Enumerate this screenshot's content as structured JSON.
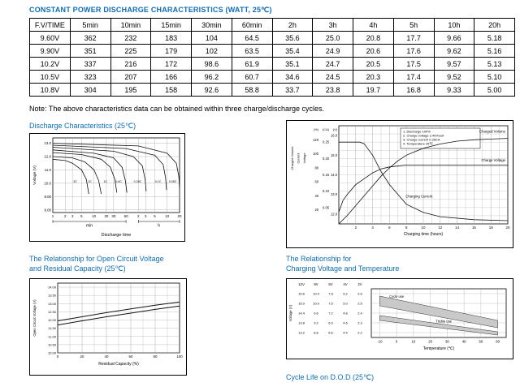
{
  "page": {
    "title": "CONSTANT POWER DISCHARGE CHARACTERISTICS (WATT, 25℃)",
    "note": "Note: The above characteristics data can be obtained within three charge/discharge cycles."
  },
  "colors": {
    "accent": "#0E6EB8",
    "grid": "#999999",
    "curve": "#111111"
  },
  "table": {
    "headers": [
      "F.V/TIME",
      "5min",
      "10min",
      "15min",
      "30min",
      "60min",
      "2h",
      "3h",
      "4h",
      "5h",
      "10h",
      "20h"
    ],
    "rows": [
      [
        "9.60V",
        "362",
        "232",
        "183",
        "104",
        "64.5",
        "35.6",
        "25.0",
        "20.8",
        "17.7",
        "9.66",
        "5.18"
      ],
      [
        "9.90V",
        "351",
        "225",
        "179",
        "102",
        "63.5",
        "35.4",
        "24.9",
        "20.6",
        "17.6",
        "9.62",
        "5.16"
      ],
      [
        "10.2V",
        "337",
        "216",
        "172",
        "98.6",
        "61.9",
        "35.1",
        "24.7",
        "20.5",
        "17.5",
        "9.57",
        "5.13"
      ],
      [
        "10.5V",
        "323",
        "207",
        "166",
        "96.2",
        "60.7",
        "34.6",
        "24.5",
        "20.3",
        "17.4",
        "9.52",
        "5.10"
      ],
      [
        "10.8V",
        "304",
        "195",
        "158",
        "92.6",
        "58.8",
        "33.7",
        "23.8",
        "19.7",
        "16.8",
        "9.33",
        "5.00"
      ]
    ]
  },
  "sections": {
    "discharge_title": "Discharge Characteristics (25℃)",
    "ocv_title_line1": "The Relationship for Open Circuit Voltage",
    "ocv_title_line2": "and Residual Capacity (25℃)",
    "charging_title_line1": "The Relationship for",
    "charging_title_line2": "Charging Voltage and Temperature",
    "cycle_life_title": "Cycle Life on D.O.D (25℃)"
  },
  "chart_data": [
    {
      "id": "discharge-characteristics",
      "type": "line",
      "title": "Discharge Characteristics (25℃)",
      "xlabel": "Discharge time",
      "ylabel": "Voltage (V)",
      "x_scale": "log-minutes",
      "x_ticks_min": [
        1,
        2,
        3,
        5,
        10,
        20,
        30,
        60
      ],
      "x_ticks_h": [
        2,
        3,
        5,
        10,
        20
      ],
      "x_group_labels": [
        "min",
        "h"
      ],
      "y_ticks": [
        "13.0",
        "12.0",
        "11.0",
        "10.0",
        "9.00",
        "8.00"
      ],
      "ylim": [
        7.8,
        13.4
      ],
      "grid": true,
      "series": [
        {
          "name": "3C",
          "points": [
            [
              1,
              11.8
            ],
            [
              2,
              11.7
            ],
            [
              3,
              11.5
            ],
            [
              5,
              11.0
            ],
            [
              6.5,
              10.3
            ],
            [
              7.5,
              9.2
            ]
          ],
          "label_at": [
            3.5,
            10.05
          ]
        },
        {
          "name": "2C",
          "points": [
            [
              1,
              12.0
            ],
            [
              3,
              11.9
            ],
            [
              6,
              11.6
            ],
            [
              10,
              11.0
            ],
            [
              13,
              10.2
            ],
            [
              15,
              9.2
            ]
          ],
          "label_at": [
            8,
            10.05
          ]
        },
        {
          "name": "1C",
          "points": [
            [
              1,
              12.3
            ],
            [
              5,
              12.15
            ],
            [
              15,
              11.8
            ],
            [
              25,
              11.2
            ],
            [
              32,
              10.3
            ],
            [
              36,
              9.3
            ]
          ],
          "label_at": [
            19,
            10.05
          ]
        },
        {
          "name": "0.6C",
          "points": [
            [
              1,
              12.5
            ],
            [
              10,
              12.25
            ],
            [
              30,
              11.9
            ],
            [
              48,
              11.2
            ],
            [
              58,
              10.2
            ],
            [
              63,
              9.3
            ]
          ],
          "label_at": [
            40,
            10.05
          ]
        },
        {
          "name": "0.25C",
          "points": [
            [
              1,
              12.7
            ],
            [
              30,
              12.4
            ],
            [
              90,
              12.0
            ],
            [
              150,
              11.3
            ],
            [
              175,
              10.3
            ],
            [
              185,
              9.4
            ]
          ],
          "label_at": [
            115,
            10.05
          ]
        },
        {
          "name": "0.1C",
          "points": [
            [
              1,
              12.85
            ],
            [
              60,
              12.6
            ],
            [
              300,
              12.1
            ],
            [
              480,
              11.4
            ],
            [
              550,
              10.4
            ],
            [
              580,
              9.5
            ]
          ],
          "label_at": [
            360,
            10.05
          ]
        },
        {
          "name": "0.05C",
          "points": [
            [
              1,
              13.0
            ],
            [
              120,
              12.8
            ],
            [
              600,
              12.25
            ],
            [
              1000,
              11.5
            ],
            [
              1150,
              10.5
            ],
            [
              1200,
              9.6
            ]
          ],
          "label_at": [
            820,
            10.05
          ]
        }
      ]
    },
    {
      "id": "charge-characteristics",
      "type": "line",
      "xlabel": "Charging time (hours)",
      "xlim": [
        0,
        20
      ],
      "x_ticks": [
        2,
        4,
        6,
        8,
        10,
        12,
        14,
        16,
        18,
        20
      ],
      "legend": [
        "1. Discharge 100%",
        "2. Charge voltage 2.40V/cell",
        "3. Charge current 0.25CA",
        "4. Temperature 25℃"
      ],
      "axes": [
        {
          "label": "Charged Volume",
          "unit": "(%)",
          "ticks": [
            "120",
            "100",
            "80",
            "60",
            "40",
            "20"
          ],
          "lim": [
            0,
            140
          ]
        },
        {
          "label": "Current",
          "unit": "(CA)",
          "ticks": [
            "0.25",
            "0.20",
            "0.15",
            "0.10",
            "0.05"
          ],
          "lim": [
            0,
            0.3
          ]
        },
        {
          "label": "Voltage",
          "unit": "(V)",
          "ticks": [
            "16.0",
            "15.0",
            "14.0",
            "13.0",
            "12.0"
          ],
          "lim": [
            11.5,
            16.5
          ]
        }
      ],
      "series": [
        {
          "name": "Charged Volume",
          "axis": 0,
          "points": [
            [
              0,
              0
            ],
            [
              1,
              12
            ],
            [
              2,
              26
            ],
            [
              3,
              40
            ],
            [
              4,
              54
            ],
            [
              5,
              68
            ],
            [
              6,
              80
            ],
            [
              7,
              90
            ],
            [
              8,
              98
            ],
            [
              10,
              108
            ],
            [
              12,
              114
            ],
            [
              14,
              118
            ],
            [
              16,
              120
            ],
            [
              18,
              121
            ],
            [
              20,
              122
            ]
          ]
        },
        {
          "name": "Charge Voltage",
          "axis": 2,
          "points": [
            [
              0,
              12.1
            ],
            [
              0.5,
              12.7
            ],
            [
              1,
              13.0
            ],
            [
              2,
              13.5
            ],
            [
              3,
              13.8
            ],
            [
              4,
              14.1
            ],
            [
              5,
              14.3
            ],
            [
              6,
              14.4
            ],
            [
              8,
              14.5
            ],
            [
              12,
              14.5
            ],
            [
              20,
              14.5
            ]
          ]
        },
        {
          "name": "Charging Current",
          "axis": 1,
          "points": [
            [
              0,
              0.25
            ],
            [
              2.5,
              0.25
            ],
            [
              3,
              0.245
            ],
            [
              4,
              0.21
            ],
            [
              5,
              0.16
            ],
            [
              6,
              0.12
            ],
            [
              7,
              0.09
            ],
            [
              8,
              0.06
            ],
            [
              10,
              0.035
            ],
            [
              12,
              0.022
            ],
            [
              16,
              0.013
            ],
            [
              20,
              0.01
            ]
          ]
        }
      ]
    },
    {
      "id": "open-circuit-voltage-vs-residual-capacity",
      "type": "line",
      "title": "The Relationship for Open Circuit Voltage and Residual Capacity (25℃)",
      "xlabel": "Residual Capacity (%)",
      "ylabel": "Open Circuit Voltage (V)",
      "xlim": [
        0,
        100
      ],
      "x_ticks": [
        0,
        20,
        40,
        60,
        80,
        100
      ],
      "y_ticks": [
        "14.00",
        "13.50",
        "13.00",
        "12.50",
        "12.00",
        "11.50",
        "11.00",
        "10.50",
        "10.00"
      ],
      "ylim": [
        10.0,
        14.25
      ],
      "grid": true,
      "series": [
        {
          "name": "upper",
          "points": [
            [
              0,
              11.95
            ],
            [
              20,
              12.2
            ],
            [
              40,
              12.45
            ],
            [
              60,
              12.68
            ],
            [
              80,
              12.9
            ],
            [
              100,
              13.1
            ]
          ]
        },
        {
          "name": "lower",
          "points": [
            [
              0,
              11.7
            ],
            [
              20,
              11.95
            ],
            [
              40,
              12.2
            ],
            [
              60,
              12.42
            ],
            [
              80,
              12.65
            ],
            [
              100,
              12.85
            ]
          ]
        }
      ]
    },
    {
      "id": "charging-voltage-vs-temperature",
      "type": "band",
      "title": "The Relationship for Charging Voltage and Temperature",
      "xlabel": "Temperature (℃)",
      "ylabel": "Voltage (V)",
      "xlim": [
        -15,
        65
      ],
      "x_ticks": [
        -10,
        0,
        10,
        20,
        30,
        40,
        50,
        60
      ],
      "columns": [
        "12V",
        "8V",
        "6V",
        "4V",
        "2V"
      ],
      "scales": [
        [
          "15.6",
          "15.0",
          "14.4",
          "13.8",
          "13.2"
        ],
        [
          "10.4",
          "10.0",
          "9.6",
          "9.2",
          "8.8"
        ],
        [
          "7.8",
          "7.5",
          "7.2",
          "6.9",
          "6.6"
        ],
        [
          "5.2",
          "5.0",
          "4.8",
          "4.6",
          "4.4"
        ],
        [
          "2.6",
          "2.5",
          "2.4",
          "2.3",
          "2.2"
        ]
      ],
      "row_values": [
        15.6,
        15.0,
        14.4,
        13.8,
        13.2
      ],
      "ylim": [
        12.9,
        15.9
      ],
      "bands": [
        {
          "name": "Cycle use",
          "upper": [
            [
              -10,
              15.45
            ],
            [
              60,
              13.95
            ]
          ],
          "lower": [
            [
              -10,
              14.85
            ],
            [
              60,
              13.5
            ]
          ],
          "label_at": [
            0,
            15.35
          ]
        },
        {
          "name": "Trickle use",
          "upper": [
            [
              -10,
              14.25
            ],
            [
              60,
              13.25
            ]
          ],
          "lower": [
            [
              -10,
              13.95
            ],
            [
              60,
              13.05
            ]
          ],
          "label_at": [
            28,
            13.82
          ]
        }
      ]
    }
  ]
}
